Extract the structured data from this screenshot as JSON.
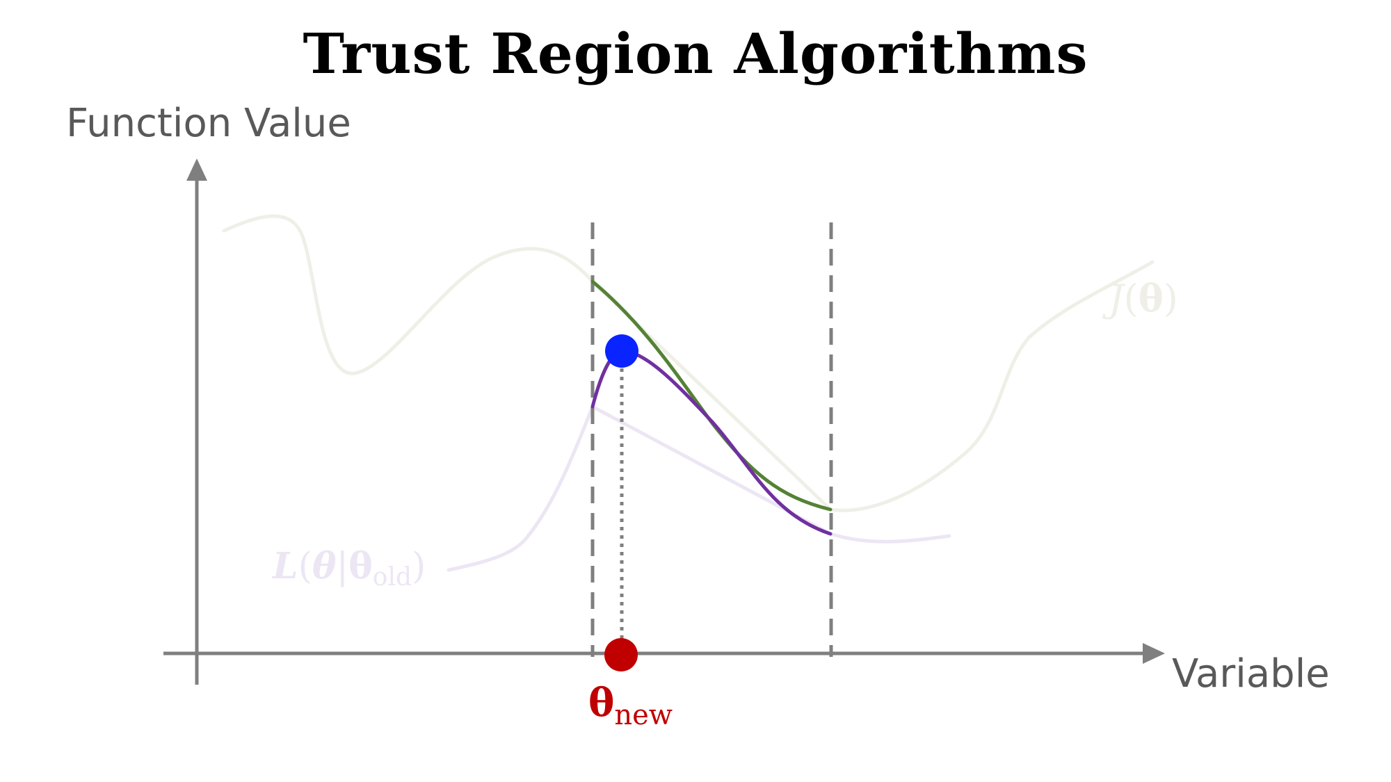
{
  "title": "Trust Region Algorithms",
  "axes": {
    "y_label": "Function Value",
    "x_label": "Variable"
  },
  "curves": {
    "objective": {
      "label_fn": "J",
      "label_open": "(",
      "label_var": "θ",
      "label_close": ")",
      "color": "#efefe8"
    },
    "surrogate": {
      "label_fn": "L",
      "label_open": "(",
      "label_var": "θ",
      "label_bar": "|",
      "label_var2": "θ",
      "label_sub": "old",
      "label_close": ")",
      "faded_color": "#ece6f4",
      "active_color": "#7030a0"
    },
    "objective_in_region": {
      "color": "#548235"
    }
  },
  "points": {
    "maximum": {
      "color": "#0a24ff"
    },
    "theta_new": {
      "label": "θ",
      "subscript": "new",
      "color": "#c00000"
    }
  },
  "colors": {
    "axis": "#7f7f7f",
    "boundary": "#7f7f7f"
  }
}
